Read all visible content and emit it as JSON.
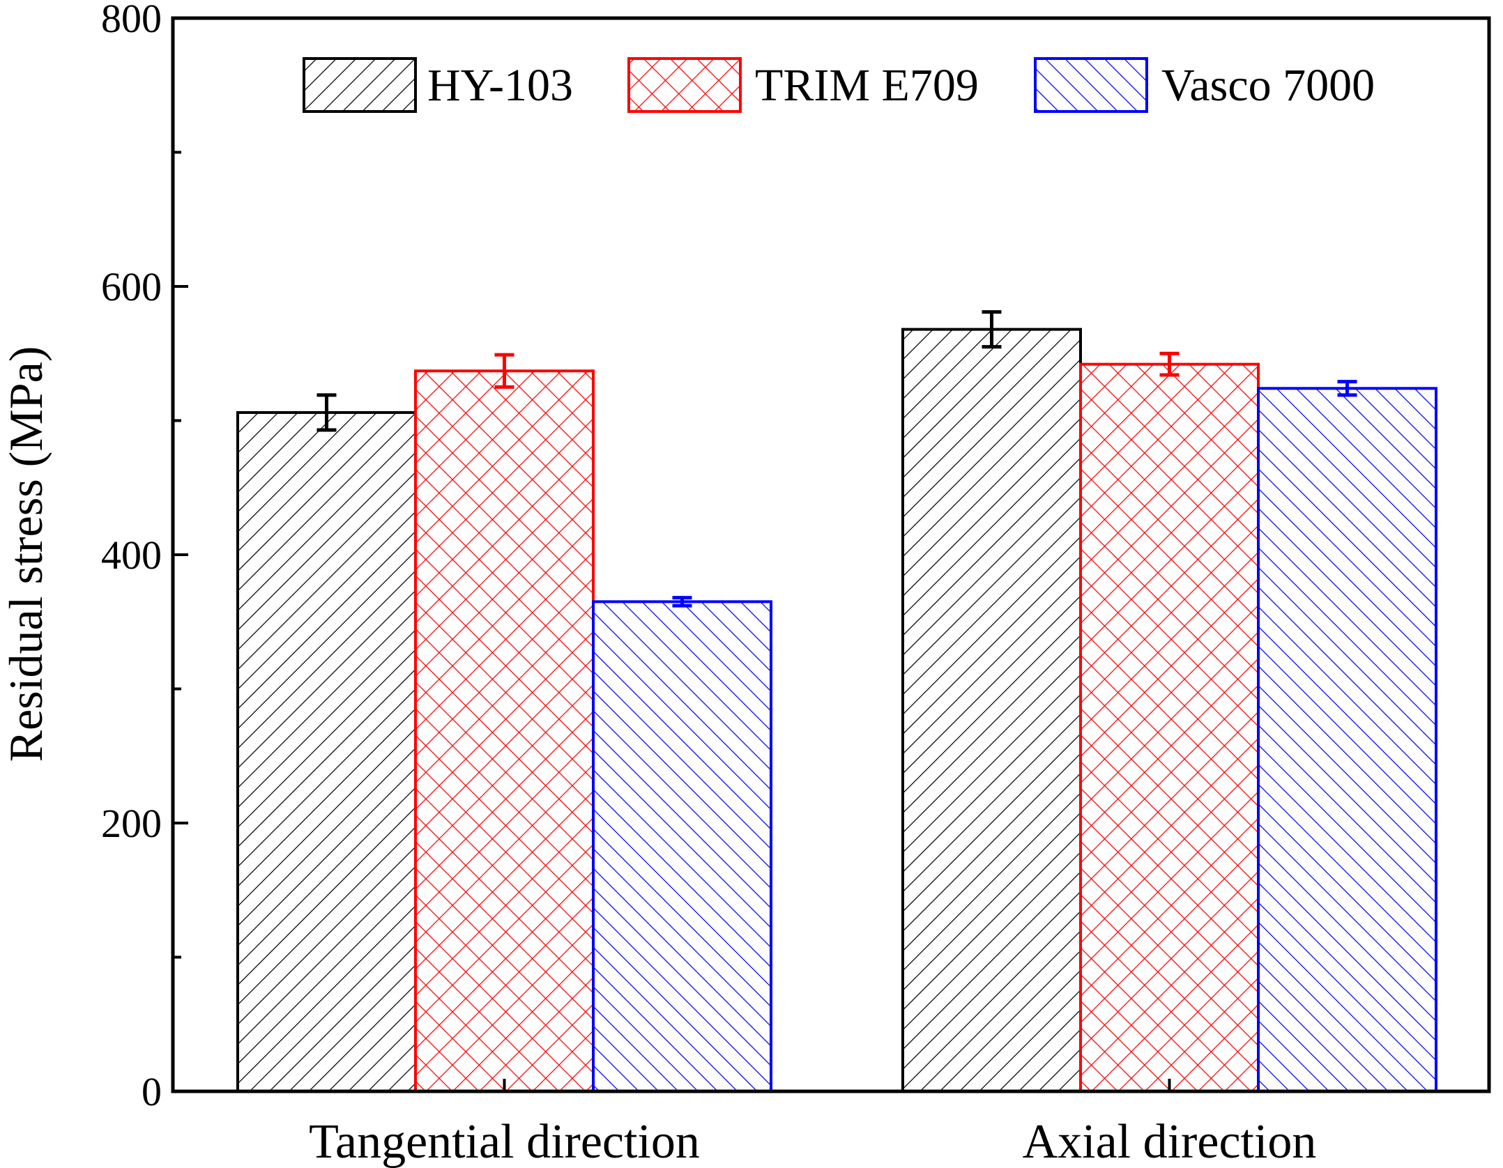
{
  "chart_data": {
    "type": "bar",
    "title": "",
    "xlabel": "",
    "ylabel": "Residual stress  (MPa)",
    "ylim": [
      0,
      800
    ],
    "yticks": [
      0,
      200,
      400,
      600,
      800
    ],
    "categories": [
      "Tangential direction",
      "Axial direction"
    ],
    "legend_position": "top",
    "series": [
      {
        "name": "HY-103",
        "values": [
          506,
          568
        ],
        "errors": [
          13,
          13
        ],
        "color": "#000000",
        "pattern": "diagonal-up"
      },
      {
        "name": "TRIM E709",
        "values": [
          537,
          542
        ],
        "errors": [
          12,
          8
        ],
        "color": "#ff0000",
        "pattern": "crosshatch"
      },
      {
        "name": "Vasco 7000",
        "values": [
          365,
          524
        ],
        "errors": [
          3,
          5
        ],
        "color": "#0000ff",
        "pattern": "diagonal-down"
      }
    ],
    "grid": false
  }
}
